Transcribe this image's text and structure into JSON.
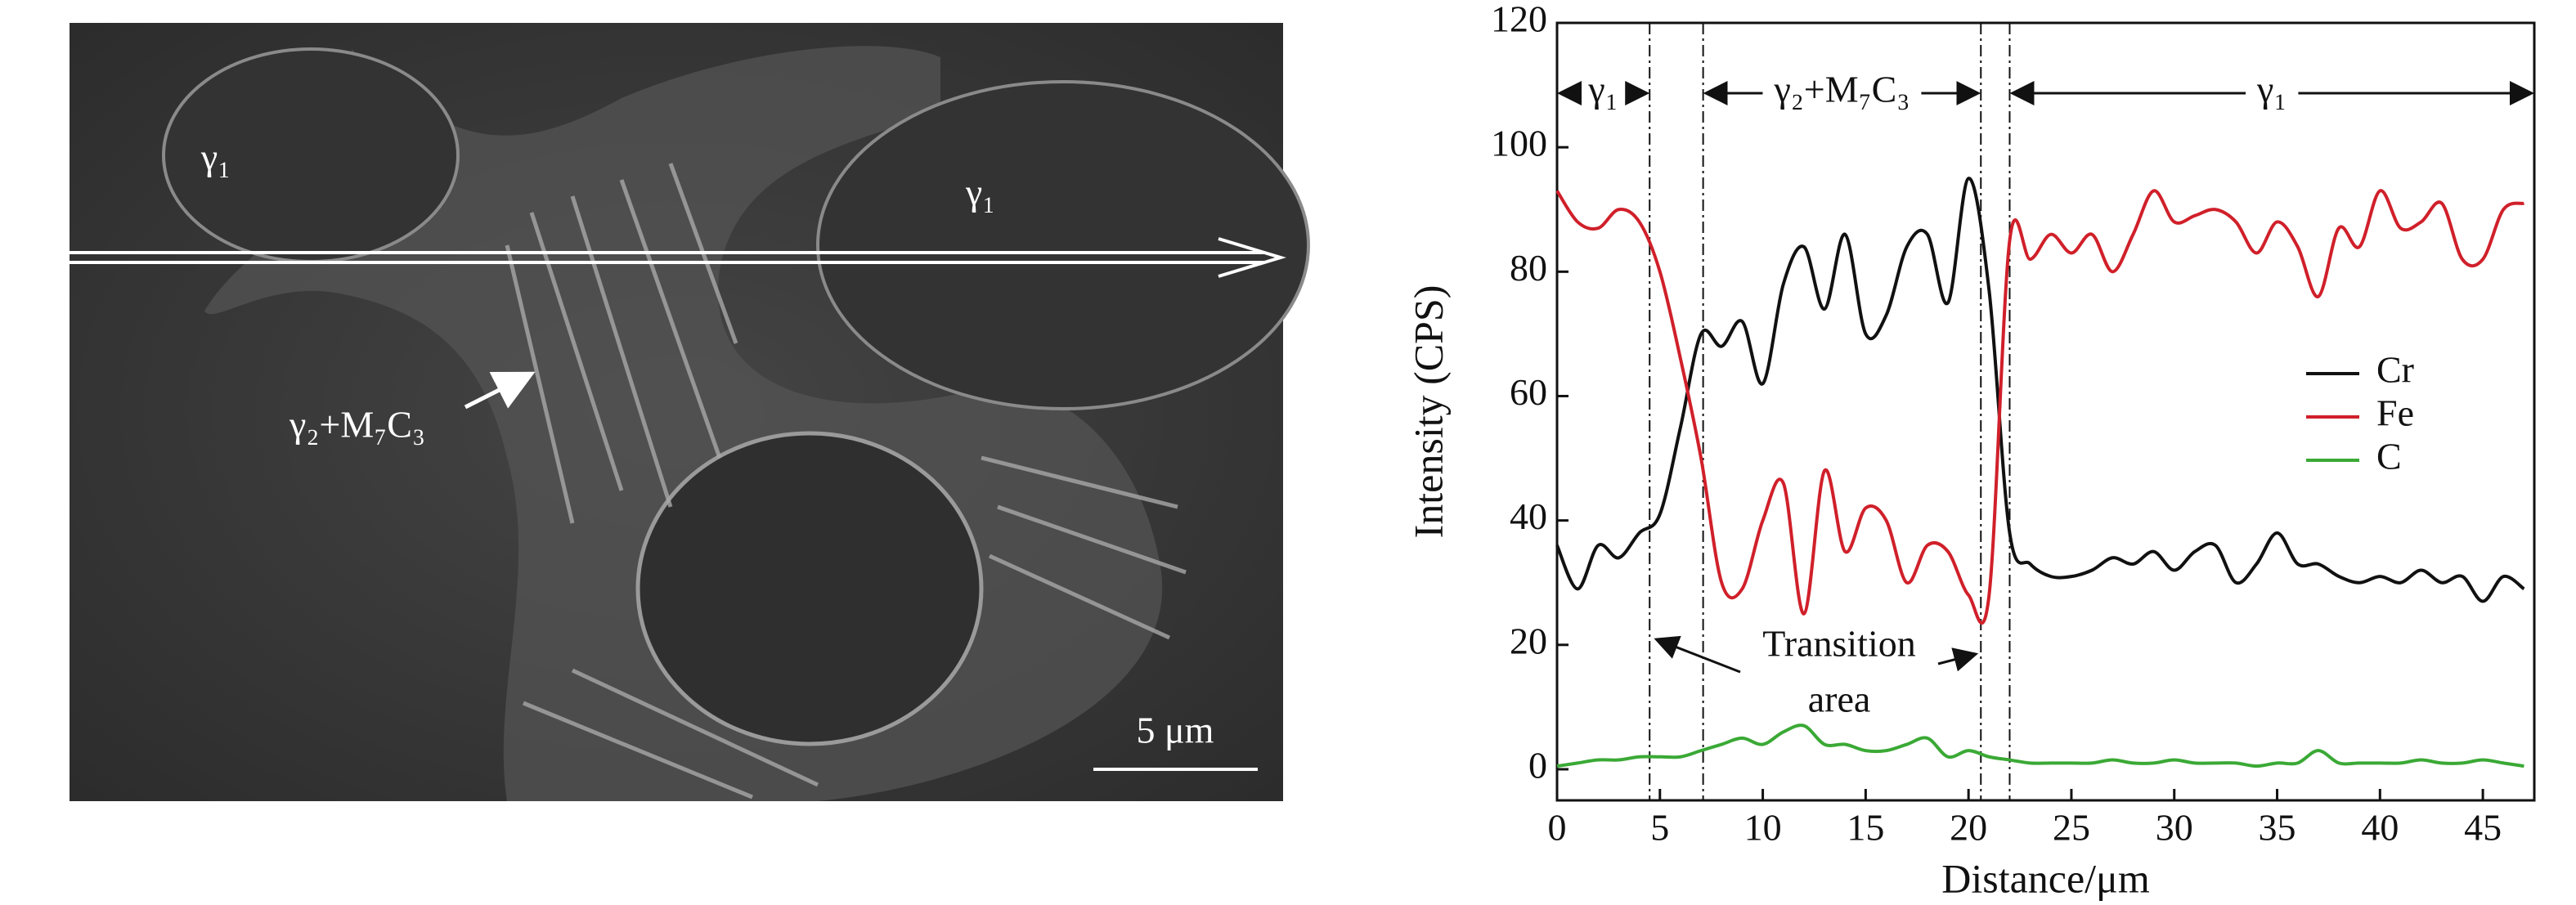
{
  "image": {
    "labels": [
      "γ₁",
      "γ₁",
      "γ₂+M₇C₃"
    ],
    "scale_bar": "5 μm"
  },
  "chart_data": {
    "type": "line",
    "x_label": "Distance/μm",
    "y_label": "Intensity (CPS)",
    "x": [
      0,
      1,
      2,
      3,
      4,
      5,
      6,
      7,
      8,
      9,
      10,
      11,
      12,
      13,
      14,
      15,
      16,
      17,
      18,
      19,
      20,
      21,
      22,
      23,
      24,
      25,
      26,
      27,
      28,
      29,
      30,
      31,
      32,
      33,
      34,
      35,
      36,
      37,
      38,
      39,
      40,
      41,
      42,
      43,
      44,
      45,
      46,
      47
    ],
    "series": [
      {
        "name": "Cr",
        "color": "#111111",
        "values": [
          36,
          29,
          36,
          34,
          38,
          41,
          55,
          70,
          68,
          72,
          62,
          78,
          84,
          74,
          86,
          70,
          73,
          84,
          86,
          75,
          95,
          77,
          38,
          33,
          31,
          31,
          32,
          34,
          33,
          35,
          32,
          35,
          36,
          30,
          33,
          38,
          33,
          33,
          31,
          30,
          31,
          30,
          32,
          30,
          31,
          27,
          31,
          29
        ]
      },
      {
        "name": "Fe",
        "color": "#d0202a",
        "values": [
          93,
          88,
          87,
          90,
          88,
          80,
          66,
          50,
          30,
          29,
          40,
          46,
          25,
          48,
          35,
          42,
          40,
          30,
          36,
          35,
          28,
          28,
          85,
          82,
          86,
          83,
          86,
          80,
          86,
          93,
          88,
          89,
          90,
          88,
          83,
          88,
          84,
          76,
          87,
          84,
          93,
          87,
          88,
          91,
          82,
          82,
          90,
          91
        ]
      },
      {
        "name": "C",
        "color": "#3aa935",
        "values": [
          0.5,
          1,
          1.5,
          1.5,
          2,
          2,
          2,
          3,
          4,
          5,
          4,
          6,
          7,
          4,
          4,
          3,
          3,
          4,
          5,
          2,
          3,
          2,
          1.5,
          1,
          1,
          1,
          1,
          1.5,
          1,
          1,
          1.5,
          1,
          1,
          1,
          0.5,
          1,
          1,
          3,
          1,
          1,
          1,
          1,
          1.5,
          1,
          1,
          1.5,
          1,
          0.5
        ]
      }
    ],
    "xlim": [
      0,
      47.5
    ],
    "ylim": [
      -5,
      120
    ],
    "xticks": [
      0,
      5,
      10,
      15,
      20,
      25,
      30,
      35,
      40,
      45
    ],
    "yticks": [
      0,
      20,
      40,
      60,
      80,
      100,
      120
    ],
    "legend": "center right",
    "boundaries": [
      4.5,
      7.1,
      20.6,
      22
    ],
    "regions": [
      "γ₁",
      "γ₂+M₇C₃",
      "γ₁"
    ],
    "annotation": [
      "Transition",
      "area"
    ]
  }
}
